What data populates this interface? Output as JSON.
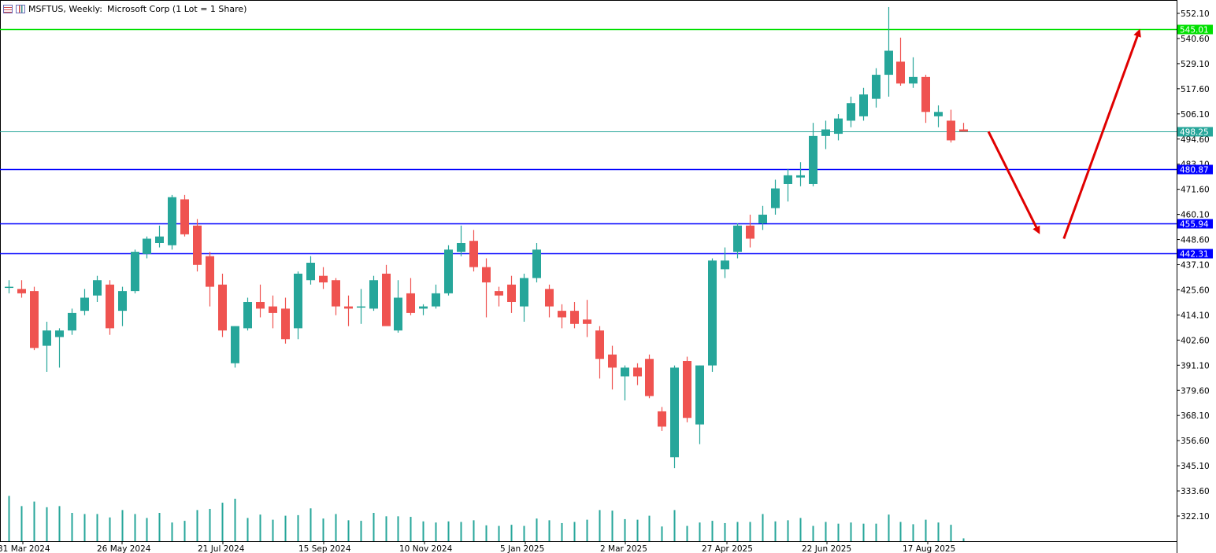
{
  "header": {
    "symbol": "MSFTUS, Weekly:",
    "description": "Microsoft Corp (1 Lot = 1 Share)"
  },
  "chart_data": {
    "type": "candlestick",
    "symbol": "MSFTUS",
    "timeframe": "Weekly",
    "price_axis": {
      "ticks": [
        "552.10",
        "540.60",
        "529.10",
        "517.60",
        "506.10",
        "494.60",
        "483.10",
        "471.60",
        "460.10",
        "448.60",
        "437.10",
        "425.60",
        "414.10",
        "402.60",
        "391.10",
        "379.60",
        "368.10",
        "356.60",
        "345.10",
        "333.60",
        "322.10"
      ]
    },
    "date_axis": {
      "ticks": [
        "31 Mar 2024",
        "26 May 2024",
        "21 Jul 2024",
        "15 Sep 2024",
        "10 Nov 2024",
        "5 Jan 2025",
        "2 Mar 2025",
        "27 Apr 2025",
        "22 Jun 2025",
        "17 Aug 2025"
      ]
    },
    "levels": [
      {
        "price": 545.01,
        "label": "545.01",
        "color": "#00e000"
      },
      {
        "price": 498.25,
        "label": "498.25",
        "color": "#26a69a"
      },
      {
        "price": 480.87,
        "label": "480.87",
        "color": "#0000ff"
      },
      {
        "price": 455.94,
        "label": "455.94",
        "color": "#0000ff"
      },
      {
        "price": 442.31,
        "label": "442.31",
        "color": "#0000ff"
      }
    ],
    "colors": {
      "bull": "#26a69a",
      "bear": "#ef5350",
      "volume": "#26a69a",
      "arrow": "#e00000"
    },
    "candles": [
      {
        "o": 427,
        "h": 430,
        "l": 424,
        "c": 427
      },
      {
        "o": 426,
        "h": 430,
        "l": 422,
        "c": 424
      },
      {
        "o": 425,
        "h": 427,
        "l": 398,
        "c": 399
      },
      {
        "o": 400,
        "h": 411,
        "l": 388,
        "c": 407
      },
      {
        "o": 404,
        "h": 408,
        "l": 390,
        "c": 407
      },
      {
        "o": 407,
        "h": 417,
        "l": 405,
        "c": 415
      },
      {
        "o": 416,
        "h": 426,
        "l": 414,
        "c": 422
      },
      {
        "o": 423,
        "h": 432,
        "l": 420,
        "c": 430
      },
      {
        "o": 428,
        "h": 430,
        "l": 405,
        "c": 408
      },
      {
        "o": 416,
        "h": 427,
        "l": 409,
        "c": 425
      },
      {
        "o": 425,
        "h": 444,
        "l": 424,
        "c": 443
      },
      {
        "o": 442,
        "h": 450,
        "l": 440,
        "c": 449
      },
      {
        "o": 447,
        "h": 455,
        "l": 445,
        "c": 450
      },
      {
        "o": 446,
        "h": 469,
        "l": 444,
        "c": 468
      },
      {
        "o": 467,
        "h": 469,
        "l": 450,
        "c": 451
      },
      {
        "o": 455,
        "h": 458,
        "l": 434,
        "c": 437
      },
      {
        "o": 441,
        "h": 443,
        "l": 418,
        "c": 427
      },
      {
        "o": 428,
        "h": 433,
        "l": 404,
        "c": 407
      },
      {
        "o": 392,
        "h": 409,
        "l": 390,
        "c": 409
      },
      {
        "o": 408,
        "h": 422,
        "l": 407,
        "c": 420
      },
      {
        "o": 420,
        "h": 428,
        "l": 413,
        "c": 417
      },
      {
        "o": 418,
        "h": 423,
        "l": 408,
        "c": 415
      },
      {
        "o": 417,
        "h": 422,
        "l": 401,
        "c": 403
      },
      {
        "o": 408,
        "h": 434,
        "l": 403,
        "c": 433
      },
      {
        "o": 430,
        "h": 441,
        "l": 428,
        "c": 438
      },
      {
        "o": 432,
        "h": 436,
        "l": 426,
        "c": 429
      },
      {
        "o": 430,
        "h": 431,
        "l": 414,
        "c": 418
      },
      {
        "o": 418,
        "h": 423,
        "l": 409,
        "c": 417
      },
      {
        "o": 418,
        "h": 426,
        "l": 410,
        "c": 418
      },
      {
        "o": 417,
        "h": 432,
        "l": 416,
        "c": 430
      },
      {
        "o": 433,
        "h": 437,
        "l": 410,
        "c": 409
      },
      {
        "o": 407,
        "h": 430,
        "l": 406,
        "c": 422
      },
      {
        "o": 424,
        "h": 431,
        "l": 414,
        "c": 415
      },
      {
        "o": 417,
        "h": 419,
        "l": 414,
        "c": 418
      },
      {
        "o": 418,
        "h": 428,
        "l": 417,
        "c": 424
      },
      {
        "o": 424,
        "h": 446,
        "l": 423,
        "c": 444
      },
      {
        "o": 443,
        "h": 455,
        "l": 441,
        "c": 447
      },
      {
        "o": 448,
        "h": 453,
        "l": 434,
        "c": 436
      },
      {
        "o": 436,
        "h": 440,
        "l": 413,
        "c": 429
      },
      {
        "o": 425,
        "h": 427,
        "l": 418,
        "c": 423
      },
      {
        "o": 428,
        "h": 432,
        "l": 415,
        "c": 420
      },
      {
        "o": 418,
        "h": 433,
        "l": 411,
        "c": 431
      },
      {
        "o": 431,
        "h": 447,
        "l": 429,
        "c": 444
      },
      {
        "o": 426,
        "h": 428,
        "l": 413,
        "c": 418
      },
      {
        "o": 416,
        "h": 419,
        "l": 408,
        "c": 413
      },
      {
        "o": 416,
        "h": 420,
        "l": 408,
        "c": 410
      },
      {
        "o": 412,
        "h": 421,
        "l": 404,
        "c": 410
      },
      {
        "o": 407,
        "h": 409,
        "l": 385,
        "c": 394
      },
      {
        "o": 396,
        "h": 400,
        "l": 380,
        "c": 390
      },
      {
        "o": 386,
        "h": 391,
        "l": 375,
        "c": 390
      },
      {
        "o": 390,
        "h": 392,
        "l": 382,
        "c": 386
      },
      {
        "o": 394,
        "h": 396,
        "l": 376,
        "c": 377
      },
      {
        "o": 370,
        "h": 372,
        "l": 361,
        "c": 363
      },
      {
        "o": 349,
        "h": 391,
        "l": 344,
        "c": 390
      },
      {
        "o": 393,
        "h": 395,
        "l": 365,
        "c": 367
      },
      {
        "o": 364,
        "h": 391,
        "l": 355,
        "c": 391
      },
      {
        "o": 391,
        "h": 440,
        "l": 388,
        "c": 439
      },
      {
        "o": 435,
        "h": 445,
        "l": 431,
        "c": 439
      },
      {
        "o": 443,
        "h": 456,
        "l": 440,
        "c": 455
      },
      {
        "o": 455,
        "h": 460,
        "l": 445,
        "c": 449
      },
      {
        "o": 456,
        "h": 464,
        "l": 453,
        "c": 460
      },
      {
        "o": 463,
        "h": 476,
        "l": 460,
        "c": 472
      },
      {
        "o": 474,
        "h": 481,
        "l": 466,
        "c": 478
      },
      {
        "o": 477,
        "h": 484,
        "l": 473,
        "c": 478
      },
      {
        "o": 474,
        "h": 502,
        "l": 473,
        "c": 496
      },
      {
        "o": 496,
        "h": 503,
        "l": 490,
        "c": 499
      },
      {
        "o": 497,
        "h": 506,
        "l": 494,
        "c": 504
      },
      {
        "o": 503,
        "h": 514,
        "l": 500,
        "c": 511
      },
      {
        "o": 505,
        "h": 518,
        "l": 503,
        "c": 515
      },
      {
        "o": 513,
        "h": 527,
        "l": 509,
        "c": 524
      },
      {
        "o": 524,
        "h": 555,
        "l": 514,
        "c": 535
      },
      {
        "o": 530,
        "h": 541,
        "l": 519,
        "c": 520
      },
      {
        "o": 520,
        "h": 532,
        "l": 518,
        "c": 523
      },
      {
        "o": 523,
        "h": 524,
        "l": 502,
        "c": 507
      },
      {
        "o": 505,
        "h": 510,
        "l": 500,
        "c": 507
      },
      {
        "o": 503,
        "h": 508,
        "l": 493,
        "c": 494
      },
      {
        "o": 499,
        "h": 502,
        "l": 498,
        "c": 498
      }
    ],
    "volumes": [
      0.8,
      0.62,
      0.7,
      0.6,
      0.62,
      0.5,
      0.48,
      0.48,
      0.42,
      0.55,
      0.48,
      0.41,
      0.5,
      0.33,
      0.36,
      0.55,
      0.57,
      0.68,
      0.75,
      0.41,
      0.47,
      0.38,
      0.45,
      0.46,
      0.58,
      0.4,
      0.48,
      0.37,
      0.36,
      0.5,
      0.44,
      0.44,
      0.43,
      0.35,
      0.33,
      0.35,
      0.34,
      0.37,
      0.28,
      0.27,
      0.29,
      0.27,
      0.4,
      0.37,
      0.32,
      0.34,
      0.38,
      0.55,
      0.54,
      0.39,
      0.38,
      0.45,
      0.26,
      0.55,
      0.27,
      0.33,
      0.36,
      0.32,
      0.34,
      0.34,
      0.48,
      0.35,
      0.37,
      0.41,
      0.27,
      0.34,
      0.31,
      0.33,
      0.31,
      0.31,
      0.47,
      0.34,
      0.3,
      0.38,
      0.33,
      0.29,
      0.05
    ],
    "forecast_arrows": [
      {
        "from": {
          "candle_offset": 2,
          "price": 498
        },
        "to": {
          "candle_offset": 6,
          "price": 452
        }
      },
      {
        "from": {
          "candle_offset": 8,
          "price": 449
        },
        "to": {
          "candle_offset": 14,
          "price": 544
        }
      }
    ]
  }
}
